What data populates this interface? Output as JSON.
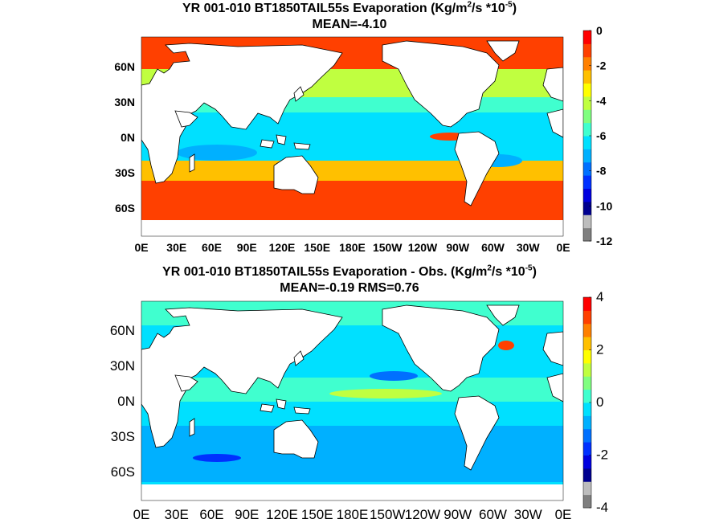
{
  "palette": [
    "#7f7f7f",
    "#bdbdbd",
    "#00008f",
    "#0000df",
    "#0030ff",
    "#0070ff",
    "#00b0ff",
    "#00e0ff",
    "#40ffcf",
    "#80ff80",
    "#c0ff40",
    "#ffff00",
    "#ffc000",
    "#ff8000",
    "#ff4000",
    "#ff0000"
  ],
  "land_color": "#ffffff",
  "panels": [
    {
      "title_main": "YR 001-010 BT1850TAIL55s  Evaporation (Kg/m",
      "title_sup1": "2",
      "title_mid": "/s *10",
      "title_sup2": "-5",
      "title_end": ")",
      "stats": "MEAN=-4.10",
      "lat_ticks": [
        "60N",
        "30N",
        "0N",
        "30S",
        "60S"
      ],
      "lon_ticks": [
        "0E",
        "30E",
        "60E",
        "90E",
        "120E",
        "150E",
        "180E",
        "150W",
        "120W",
        "90W",
        "60W",
        "30W",
        "0E"
      ],
      "colorbar_ticks": [
        "0",
        "-2",
        "-4",
        "-6",
        "-8",
        "-10",
        "-12"
      ],
      "colorbar_range": [
        -12,
        0
      ]
    },
    {
      "title_main": "YR 001-010 BT1850TAIL55s Evaporation - Obs. (Kg/m",
      "title_sup1": "2",
      "title_mid": "/s *10",
      "title_sup2": "-5",
      "title_end": ")",
      "stats": "MEAN=-0.19   RMS=0.76",
      "lat_ticks": [
        "60N",
        "30N",
        "0N",
        "30S",
        "60S"
      ],
      "lon_ticks": [
        "0E",
        "30E",
        "60E",
        "90E",
        "120E",
        "150E",
        "180E",
        "150W",
        "120W",
        "90W",
        "60W",
        "30W",
        "0E"
      ],
      "colorbar_ticks": [
        "4",
        "2",
        "0",
        "-2",
        "-4"
      ],
      "colorbar_range": [
        -4,
        4
      ]
    }
  ]
}
